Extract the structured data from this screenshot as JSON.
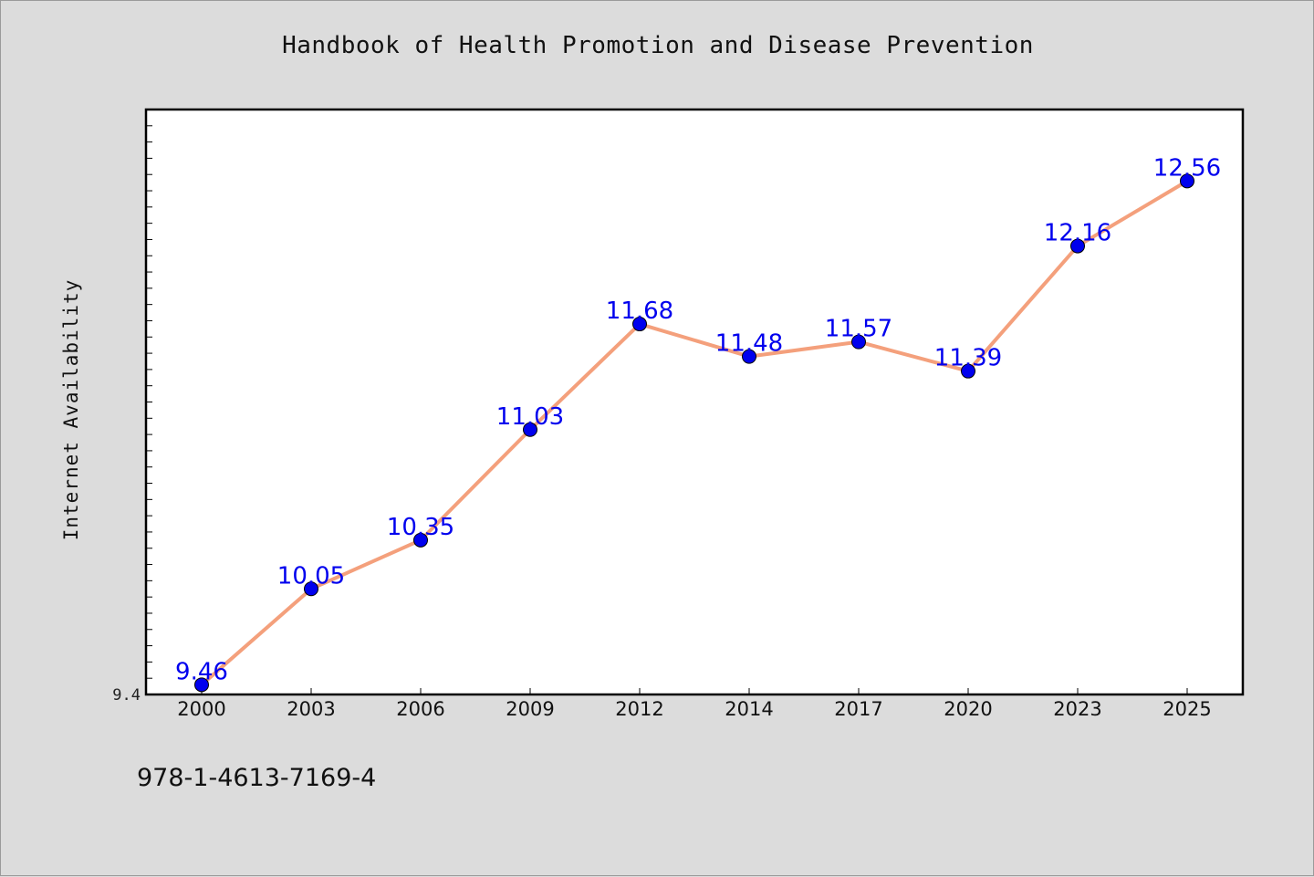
{
  "chart_data": {
    "type": "line",
    "title": "Handbook of Health Promotion and Disease Prevention",
    "ylabel": "Internet Availability",
    "xlabel": "",
    "categories": [
      "2000",
      "2003",
      "2006",
      "2009",
      "2012",
      "2014",
      "2017",
      "2020",
      "2023",
      "2025"
    ],
    "series": [
      {
        "values": [
          9.46,
          10.05,
          10.35,
          11.03,
          11.68,
          11.48,
          11.57,
          11.39,
          12.16,
          12.56
        ],
        "data_labels": [
          "9.46",
          "10.05",
          "10.35",
          "11.03",
          "11.68",
          "11.48",
          "11.57",
          "11.39",
          "12.16",
          "12.56"
        ]
      }
    ],
    "ylim": [
      9.4,
      13.0
    ],
    "y_tick_labels": [
      "9.4"
    ],
    "grid": false,
    "legend": "none",
    "line_color": "#f4a07c",
    "marker_color": "#0000ee",
    "label_color": "#0000ee"
  },
  "footer": {
    "isbn": "978-1-4613-7169-4"
  },
  "colors": {
    "background": "#dcdcdc",
    "plot_background": "#ffffff",
    "axis": "#000000"
  }
}
